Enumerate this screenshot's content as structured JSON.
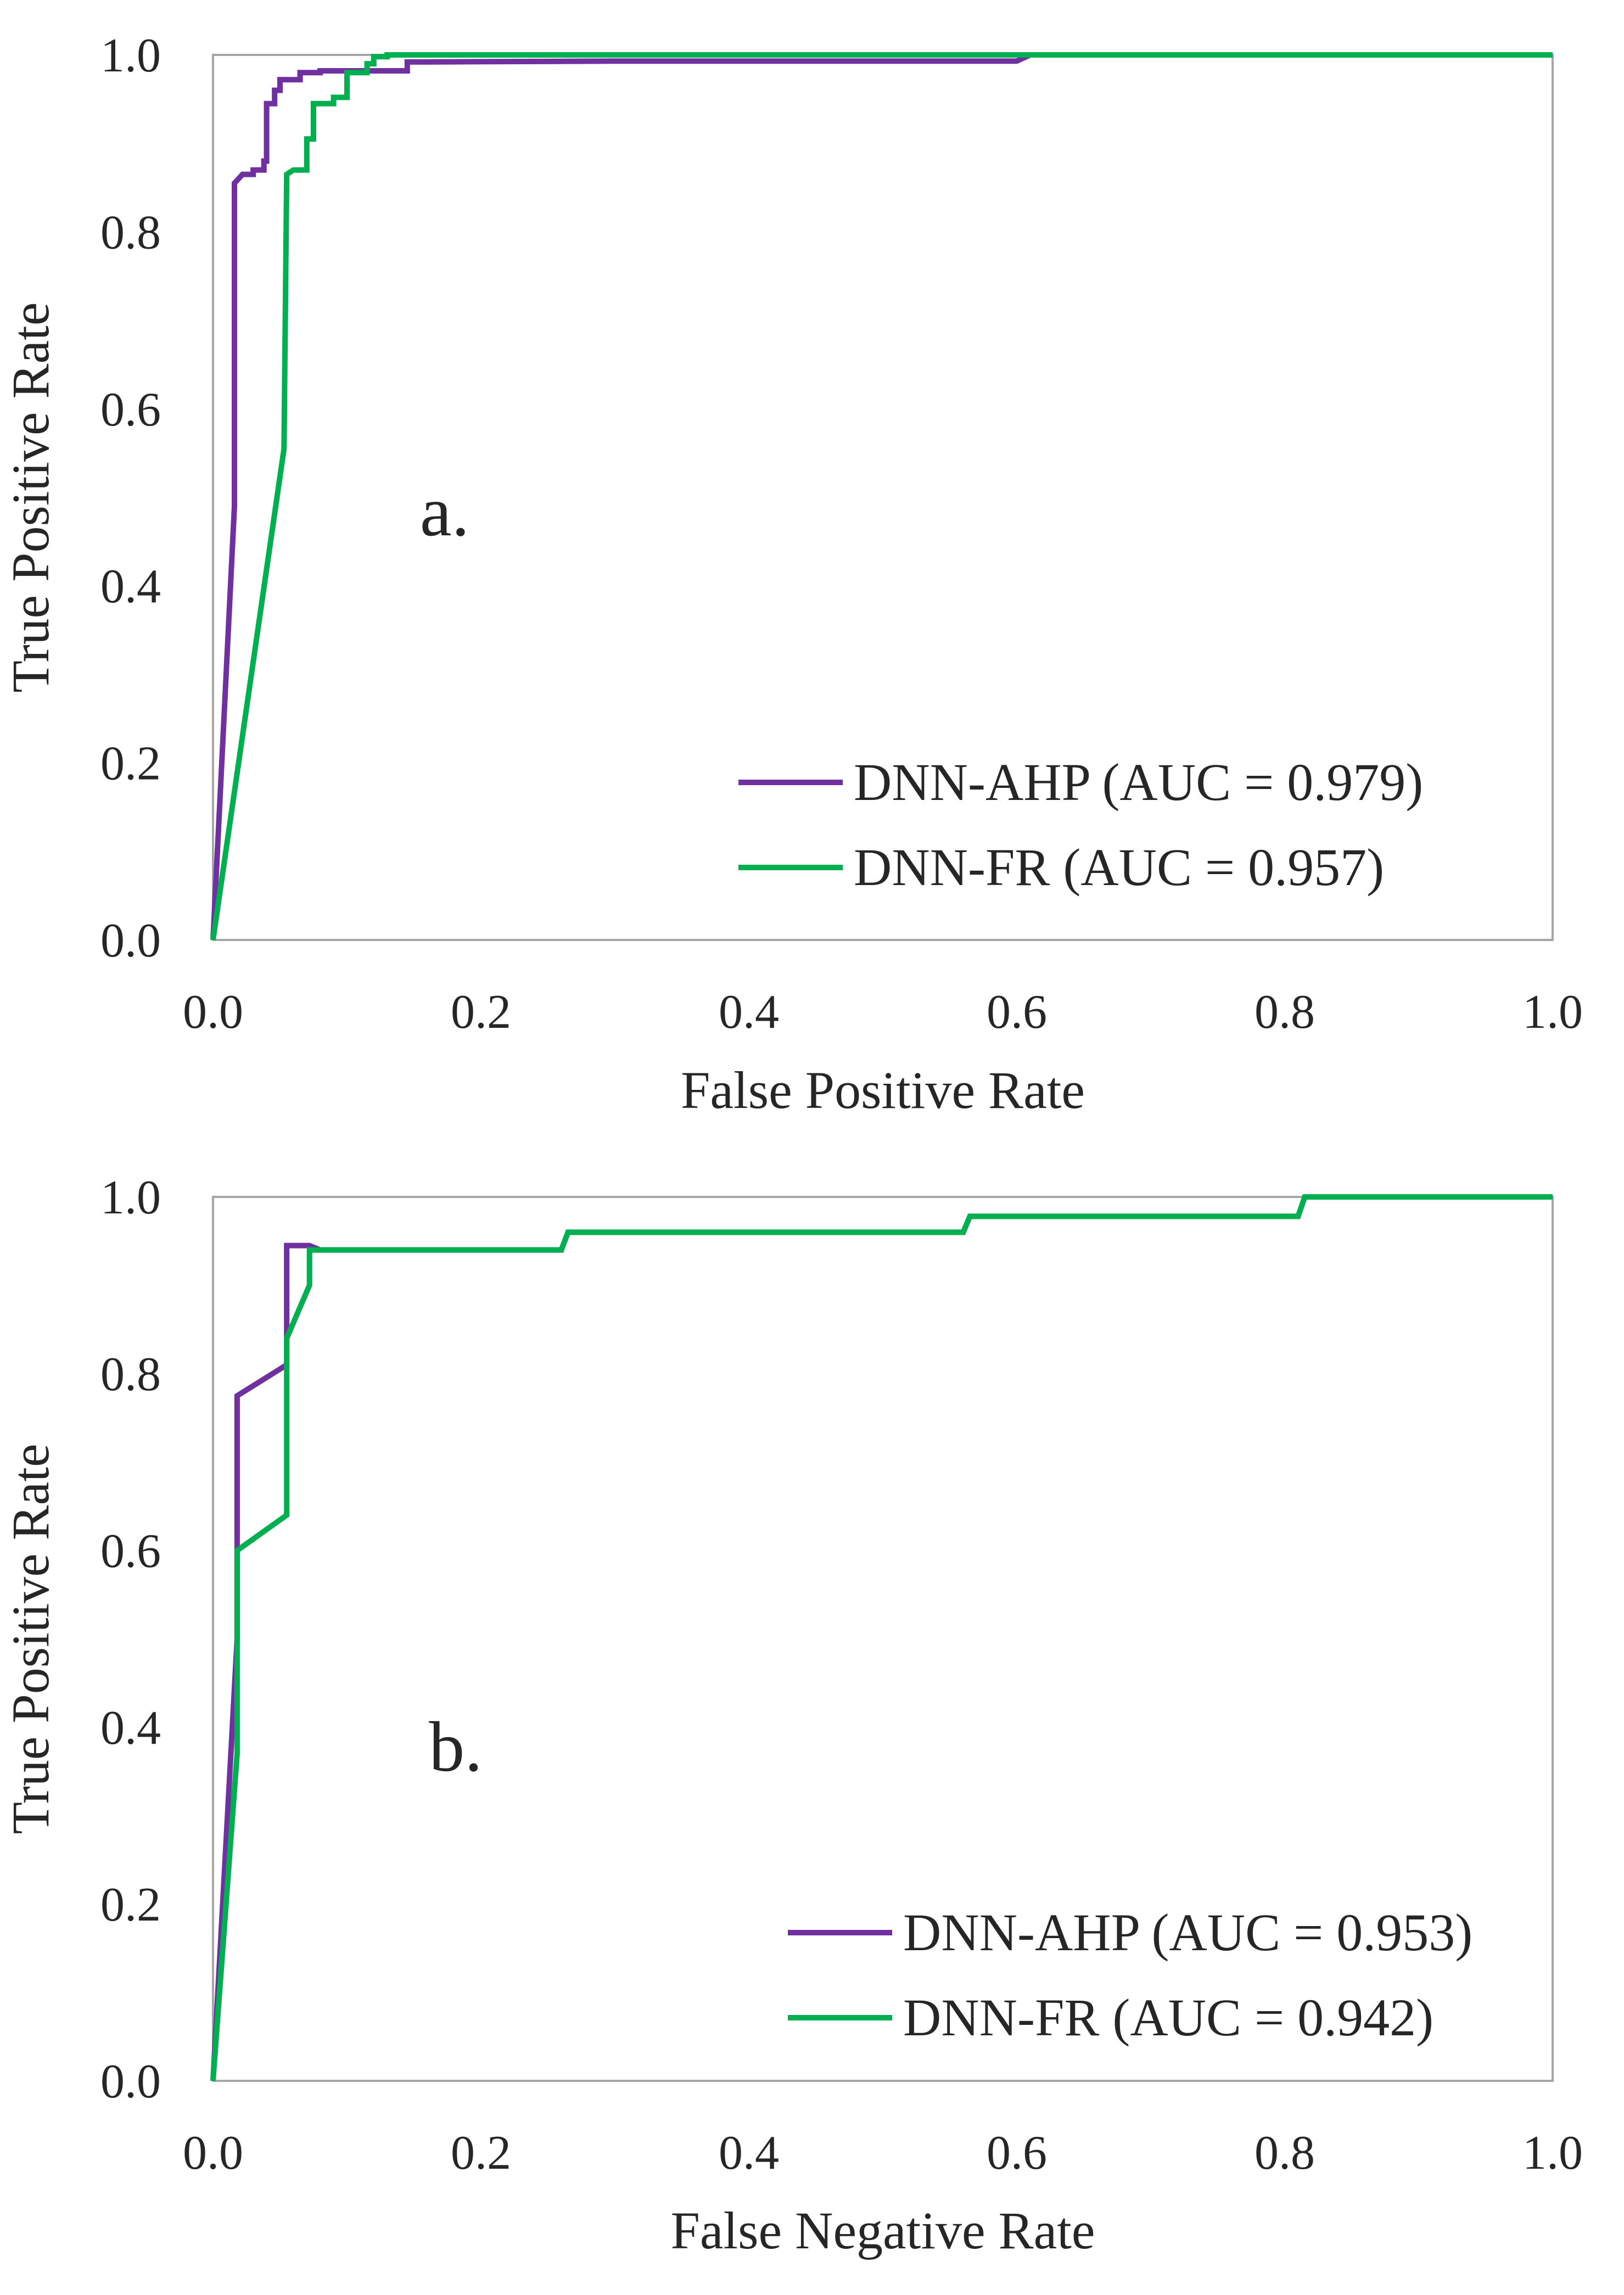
{
  "colors": {
    "series_purple": "#7030A0",
    "series_green": "#00B050",
    "axis": "#A6A6A6",
    "text": "#262626"
  },
  "chart_data": [
    {
      "type": "line",
      "panel_label": "a.",
      "xlabel": "False Positive Rate",
      "ylabel": "True Positive Rate",
      "xlim": [
        0,
        1
      ],
      "ylim": [
        0,
        1
      ],
      "xticks": [
        "0.0",
        "0.2",
        "0.4",
        "0.6",
        "0.8",
        "1.0"
      ],
      "yticks": [
        "0.0",
        "0.2",
        "0.4",
        "0.6",
        "0.8",
        "1.0"
      ],
      "grid": false,
      "legend_position": "bottom-right",
      "series": [
        {
          "name": "DNN-AHP (AUC = 0.979)",
          "color": "#7030A0",
          "points": [
            [
              0,
              0
            ],
            [
              0.016,
              0.49
            ],
            [
              0.016,
              0.855
            ],
            [
              0.022,
              0.865
            ],
            [
              0.03,
              0.865
            ],
            [
              0.03,
              0.87
            ],
            [
              0.038,
              0.87
            ],
            [
              0.038,
              0.88
            ],
            [
              0.04,
              0.88
            ],
            [
              0.04,
              0.945
            ],
            [
              0.046,
              0.945
            ],
            [
              0.046,
              0.96
            ],
            [
              0.05,
              0.96
            ],
            [
              0.05,
              0.972
            ],
            [
              0.065,
              0.972
            ],
            [
              0.065,
              0.98
            ],
            [
              0.08,
              0.98
            ],
            [
              0.08,
              0.982
            ],
            [
              0.145,
              0.982
            ],
            [
              0.145,
              0.992
            ],
            [
              0.3,
              0.993
            ],
            [
              0.6,
              0.993
            ],
            [
              0.61,
              1.0
            ],
            [
              1.0,
              1.0
            ]
          ]
        },
        {
          "name": "DNN-FR (AUC = 0.957)",
          "color": "#00B050",
          "points": [
            [
              0,
              0
            ],
            [
              0.053,
              0.555
            ],
            [
              0.055,
              0.865
            ],
            [
              0.06,
              0.87
            ],
            [
              0.07,
              0.87
            ],
            [
              0.07,
              0.905
            ],
            [
              0.075,
              0.905
            ],
            [
              0.075,
              0.945
            ],
            [
              0.09,
              0.945
            ],
            [
              0.09,
              0.952
            ],
            [
              0.1,
              0.952
            ],
            [
              0.1,
              0.98
            ],
            [
              0.115,
              0.98
            ],
            [
              0.115,
              0.99
            ],
            [
              0.12,
              0.99
            ],
            [
              0.12,
              0.998
            ],
            [
              0.13,
              0.998
            ],
            [
              0.13,
              1.0
            ],
            [
              1.0,
              1.0
            ]
          ]
        }
      ]
    },
    {
      "type": "line",
      "panel_label": "b.",
      "xlabel": "False Negative Rate",
      "ylabel": "True Positive Rate",
      "xlim": [
        0,
        1
      ],
      "ylim": [
        0,
        1
      ],
      "xticks": [
        "0.0",
        "0.2",
        "0.4",
        "0.6",
        "0.8",
        "1.0"
      ],
      "yticks": [
        "0.0",
        "0.2",
        "0.4",
        "0.6",
        "0.8",
        "1.0"
      ],
      "grid": false,
      "legend_position": "bottom-right",
      "series": [
        {
          "name": "DNN-AHP (AUC = 0.953)",
          "color": "#7030A0",
          "points": [
            [
              0,
              0
            ],
            [
              0.018,
              0.5
            ],
            [
              0.018,
              0.775
            ],
            [
              0.055,
              0.81
            ],
            [
              0.055,
              0.945
            ],
            [
              0.072,
              0.945
            ],
            [
              0.08,
              0.94
            ],
            [
              0.26,
              0.94
            ],
            [
              0.265,
              0.96
            ],
            [
              0.56,
              0.96
            ],
            [
              0.565,
              0.978
            ],
            [
              0.81,
              0.978
            ],
            [
              0.815,
              1.0
            ],
            [
              1.0,
              1.0
            ]
          ]
        },
        {
          "name": "DNN-FR (AUC = 0.942)",
          "color": "#00B050",
          "points": [
            [
              0,
              0
            ],
            [
              0.018,
              0.37
            ],
            [
              0.018,
              0.6
            ],
            [
              0.055,
              0.64
            ],
            [
              0.055,
              0.84
            ],
            [
              0.072,
              0.9
            ],
            [
              0.072,
              0.94
            ],
            [
              0.26,
              0.94
            ],
            [
              0.265,
              0.96
            ],
            [
              0.56,
              0.96
            ],
            [
              0.565,
              0.978
            ],
            [
              0.81,
              0.978
            ],
            [
              0.815,
              1.0
            ],
            [
              1.0,
              1.0
            ]
          ]
        }
      ]
    }
  ]
}
